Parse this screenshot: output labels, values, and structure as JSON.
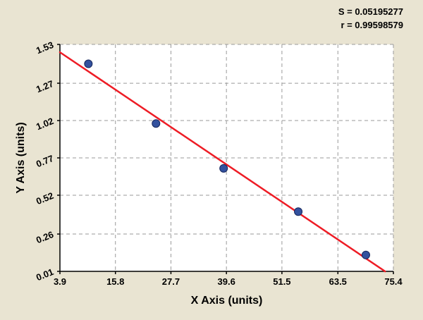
{
  "stats": {
    "s_label": "S = 0.05195277",
    "r_label": "r = 0.99598579"
  },
  "chart_data": {
    "type": "scatter",
    "title": "",
    "xlabel": "X Axis (units)",
    "ylabel": "Y Axis (units)",
    "xlim": [
      3.9,
      75.4
    ],
    "ylim": [
      0.01,
      1.53
    ],
    "x_ticks": [
      3.9,
      15.8,
      27.7,
      39.6,
      51.5,
      63.5,
      75.4
    ],
    "x_tick_labels": [
      "3.9",
      "15.8",
      "27.7",
      "39.6",
      "51.5",
      "63.5",
      "75.4"
    ],
    "y_ticks": [
      0.01,
      0.26,
      0.52,
      0.77,
      1.02,
      1.27,
      1.53
    ],
    "y_tick_labels": [
      "0.01",
      "0.26",
      "0.52",
      "0.77",
      "1.02",
      "1.27",
      "1.53"
    ],
    "grid": "dashed",
    "legend": "none",
    "points": [
      {
        "x": 10.0,
        "y": 1.4
      },
      {
        "x": 24.5,
        "y": 1.0
      },
      {
        "x": 39.0,
        "y": 0.7
      },
      {
        "x": 55.0,
        "y": 0.41
      },
      {
        "x": 69.5,
        "y": 0.12
      }
    ],
    "trendline": {
      "slope": -0.02105,
      "intercept": 1.5596
    },
    "colors": {
      "background": "#e9e4d2",
      "plot_bg": "#ffffff",
      "grid": "#9a9a9a",
      "axis": "#000000",
      "text": "#000000",
      "point": "#33519e",
      "point_edge": "#16265c",
      "line": "#ee1c25"
    }
  }
}
